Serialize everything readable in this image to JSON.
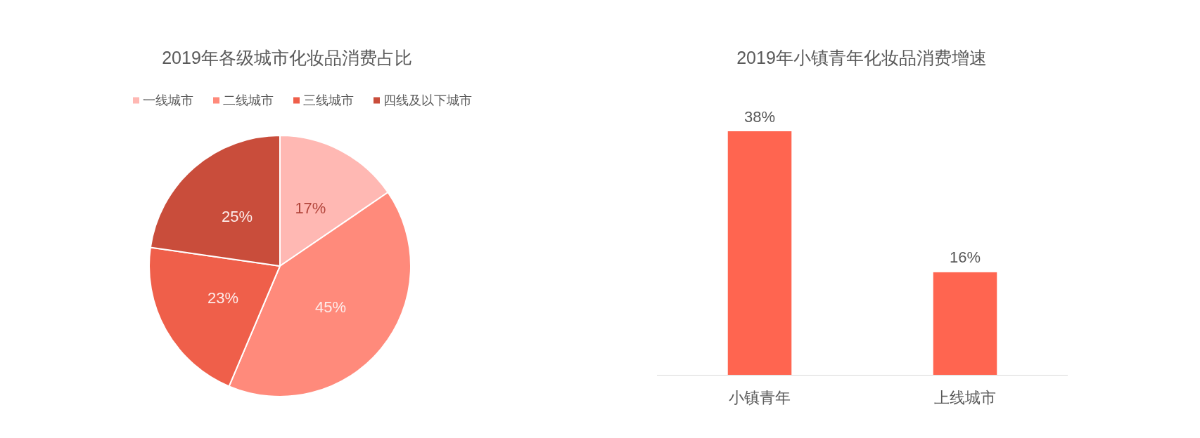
{
  "chart_data": [
    {
      "type": "pie",
      "title": "2019年各级城市化妆品消费占比",
      "categories": [
        "一线城市",
        "二线城市",
        "三线城市",
        "四线及以下城市"
      ],
      "values": [
        17,
        45,
        23,
        25
      ],
      "colors": [
        "#ffb8b3",
        "#ff8a7b",
        "#ef5f4a",
        "#c94d3b"
      ],
      "value_labels": [
        "17%",
        "45%",
        "23%",
        "25%"
      ],
      "legend": "top"
    },
    {
      "type": "bar",
      "title": "2019年小镇青年化妆品消费增速",
      "categories": [
        "小镇青年",
        "上线城市"
      ],
      "values": [
        38,
        16
      ],
      "color": "#ff6550",
      "value_labels": [
        "38%",
        "16%"
      ]
    }
  ]
}
